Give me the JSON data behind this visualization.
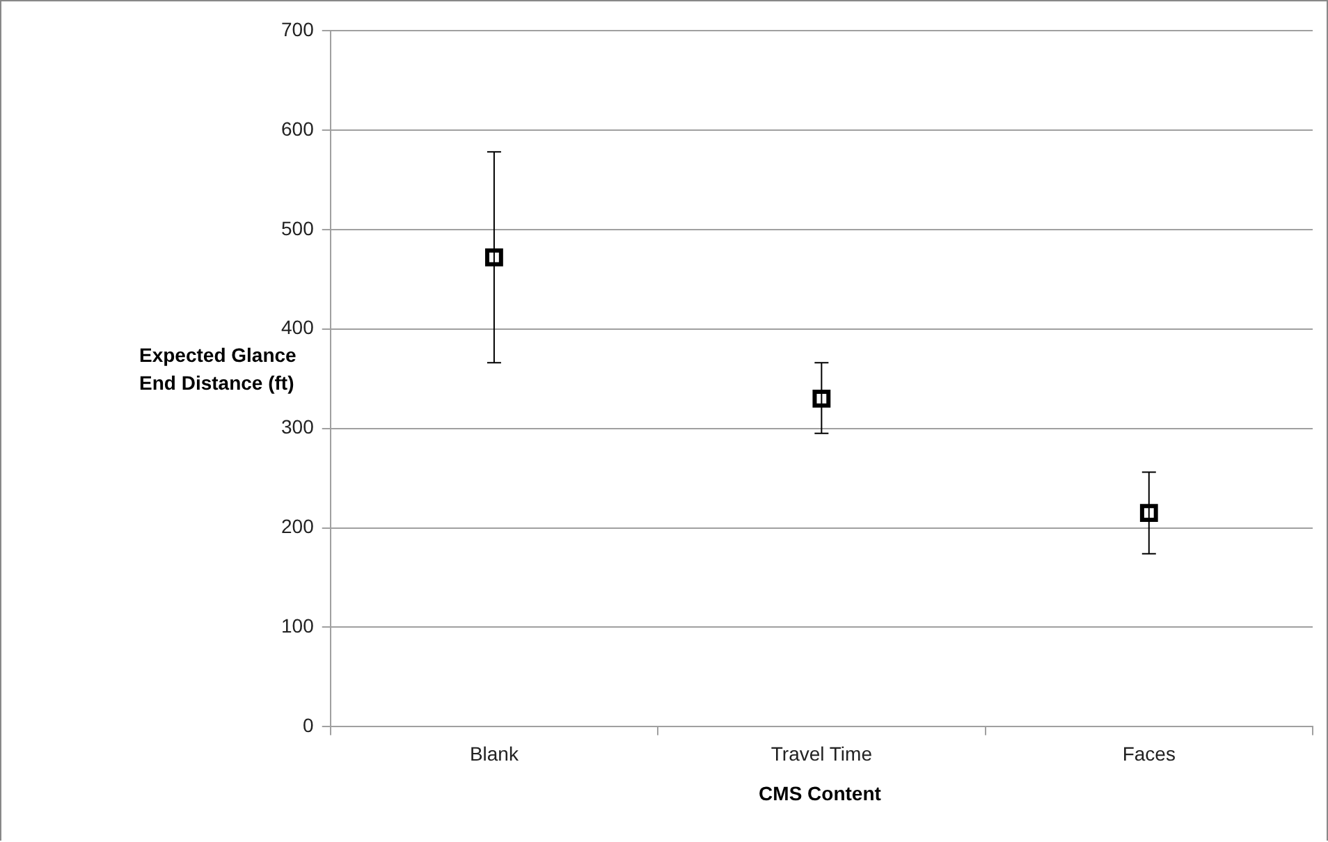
{
  "chart_data": {
    "type": "scatter",
    "xlabel": "CMS Content",
    "ylabel": "Expected Glance End Distance (ft)",
    "categories": [
      "Blank",
      "Travel Time",
      "Faces"
    ],
    "values": [
      472,
      330,
      215
    ],
    "errors": [
      [
        366,
        578
      ],
      [
        295,
        366
      ],
      [
        174,
        256
      ]
    ],
    "color": "#000000",
    "marker": "square",
    "ylim": [
      0,
      700
    ],
    "yticks": [
      0,
      100,
      200,
      300,
      400,
      500,
      600,
      700
    ],
    "grid": "y"
  }
}
